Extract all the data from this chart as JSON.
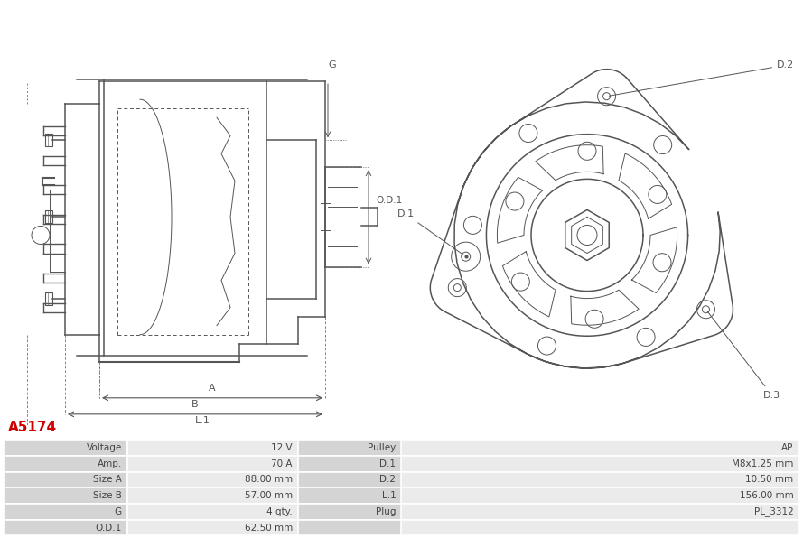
{
  "title": "A5174",
  "title_color": "#cc0000",
  "background_color": "#ffffff",
  "table_data": [
    [
      "Voltage",
      "12 V",
      "Pulley",
      "AP"
    ],
    [
      "Amp.",
      "70 A",
      "D.1",
      "M8x1.25 mm"
    ],
    [
      "Size A",
      "88.00 mm",
      "D.2",
      "10.50 mm"
    ],
    [
      "Size B",
      "57.00 mm",
      "L.1",
      "156.00 mm"
    ],
    [
      "G",
      "4 qty.",
      "Plug",
      "PL_3312"
    ],
    [
      "O.D.1",
      "62.50 mm",
      "",
      ""
    ]
  ],
  "table_text_color": "#444444",
  "line_color": "#555555"
}
